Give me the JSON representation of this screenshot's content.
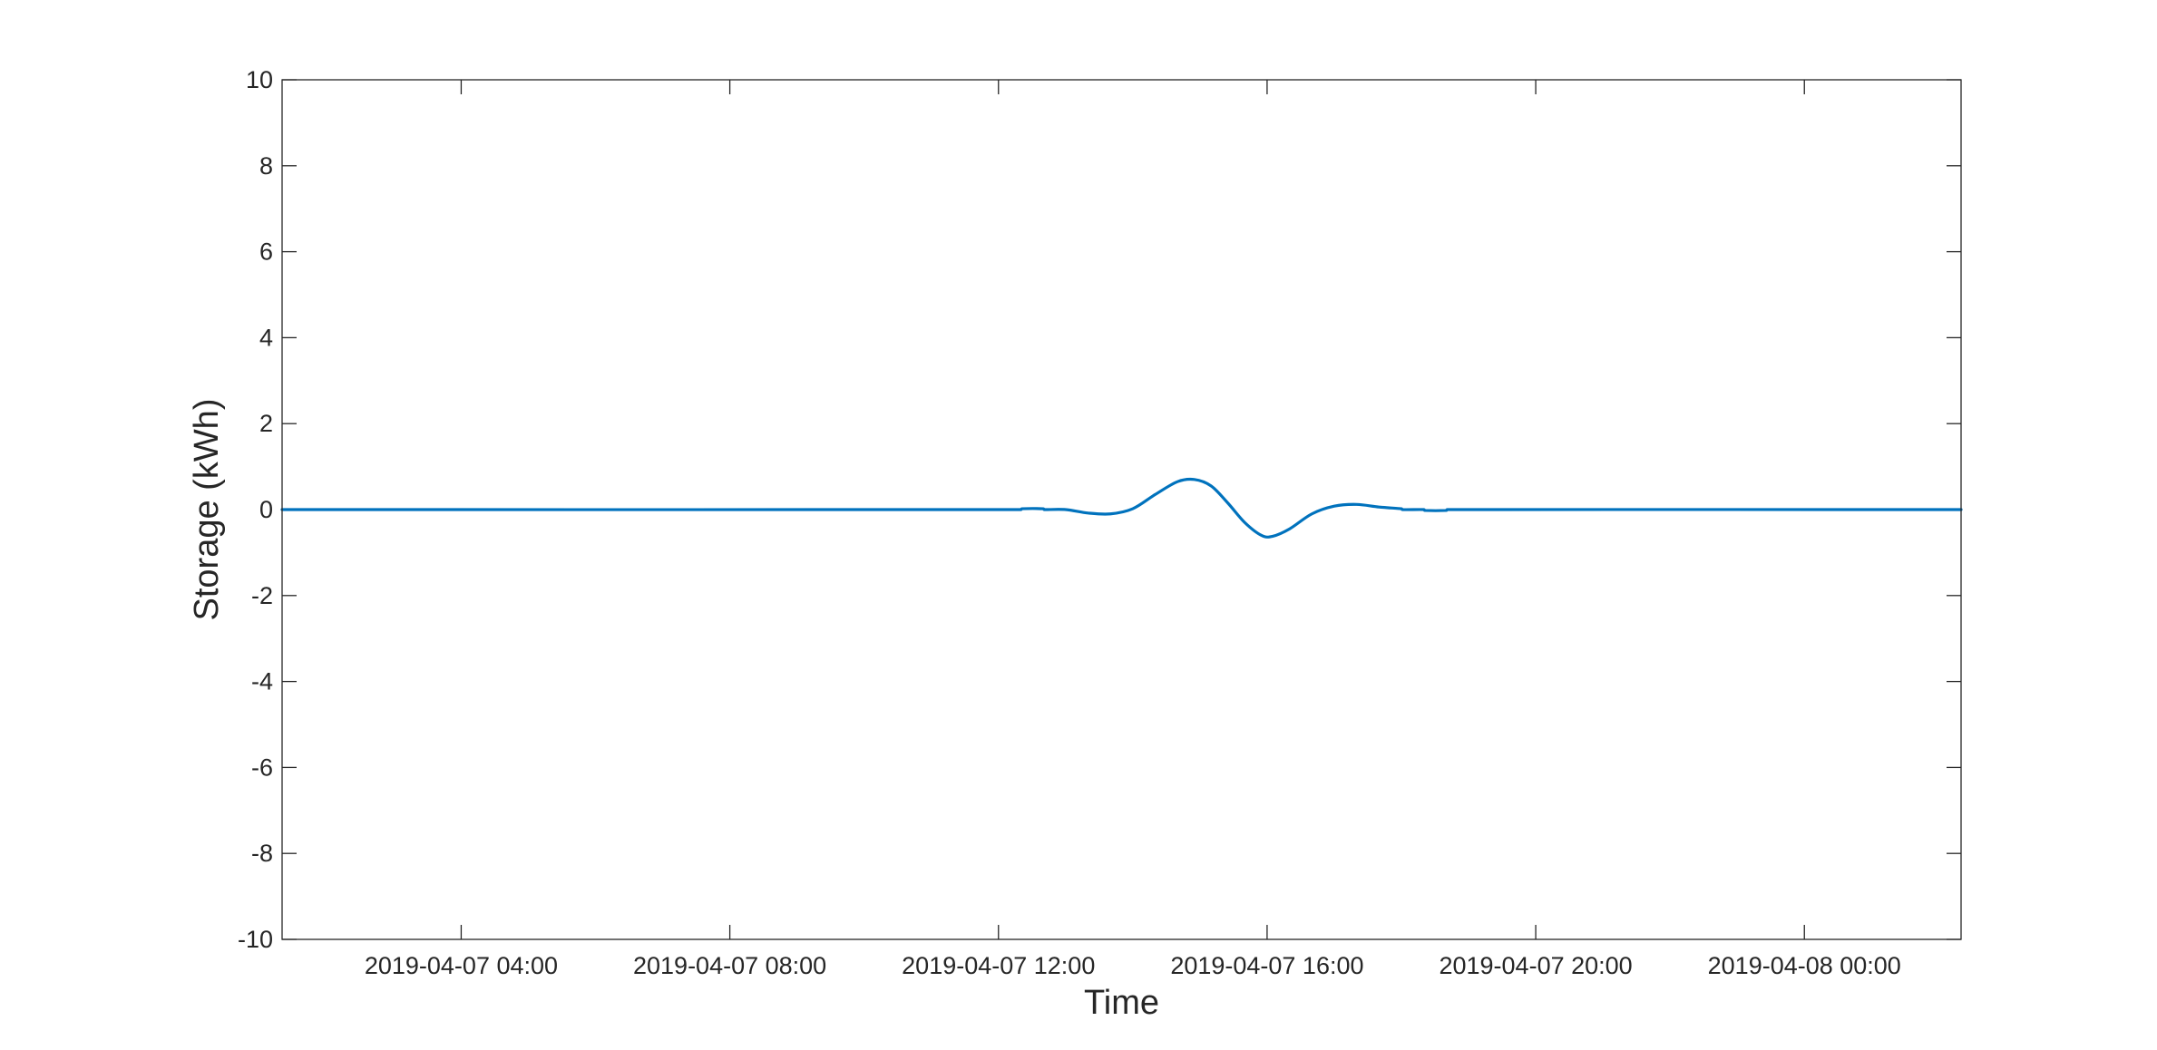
{
  "chart_data": {
    "type": "line",
    "xlabel": "Time",
    "ylabel": "Storage (kWh)",
    "ylim": [
      -10,
      10
    ],
    "xlim": [
      "2019-04-07 01:20",
      "2019-04-08 02:20"
    ],
    "yticks": [
      -10,
      -8,
      -6,
      -4,
      -2,
      0,
      2,
      4,
      6,
      8,
      10
    ],
    "xticks": [
      "2019-04-07 04:00",
      "2019-04-07 08:00",
      "2019-04-07 12:00",
      "2019-04-07 16:00",
      "2019-04-07 20:00",
      "2019-04-08 00:00"
    ],
    "grid": false,
    "colors": {
      "series": "#0072BD",
      "axes": "#262626"
    },
    "series": [
      {
        "x": [
          "2019-04-07 01:20",
          "2019-04-07 12:20",
          "2019-04-07 12:21",
          "2019-04-07 12:40",
          "2019-04-07 12:41",
          "2019-04-07 13:00",
          "2019-04-07 13:20",
          "2019-04-07 13:40",
          "2019-04-07 14:00",
          "2019-04-07 14:20",
          "2019-04-07 14:40",
          "2019-04-07 14:55",
          "2019-04-07 15:10",
          "2019-04-07 15:25",
          "2019-04-07 15:40",
          "2019-04-07 15:55",
          "2019-04-07 16:05",
          "2019-04-07 16:20",
          "2019-04-07 16:40",
          "2019-04-07 17:00",
          "2019-04-07 17:20",
          "2019-04-07 17:40",
          "2019-04-07 18:00",
          "2019-04-07 18:01",
          "2019-04-07 18:20",
          "2019-04-07 18:21",
          "2019-04-07 18:40",
          "2019-04-07 18:41",
          "2019-04-08 02:20"
        ],
        "y": [
          0,
          0,
          0.02,
          0.02,
          0,
          0,
          -0.08,
          -0.1,
          0.02,
          0.35,
          0.65,
          0.7,
          0.55,
          0.15,
          -0.3,
          -0.6,
          -0.62,
          -0.45,
          -0.1,
          0.08,
          0.12,
          0.06,
          0.02,
          0,
          0,
          -0.02,
          -0.02,
          0,
          0
        ]
      }
    ]
  }
}
